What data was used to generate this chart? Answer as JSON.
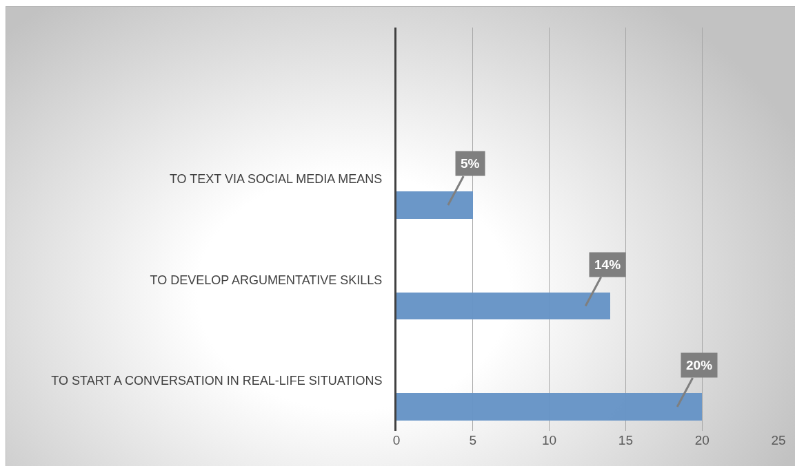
{
  "chart_data": {
    "type": "bar",
    "orientation": "horizontal",
    "categories": [
      null,
      "TO TEXT VIA SOCIAL MEDIA MEANS",
      "TO DEVELOP ARGUMENTATIVE SKILLS",
      "TO START A CONVERSATION IN REAL-LIFE SITUATIONS"
    ],
    "values": [
      null,
      5,
      14,
      20
    ],
    "value_labels": [
      null,
      "5%",
      "14%",
      "20%"
    ],
    "color": "#6794c7",
    "xlim": [
      0,
      25
    ],
    "xticks": [
      0,
      5,
      10,
      15,
      20,
      25
    ],
    "grid": "x"
  }
}
